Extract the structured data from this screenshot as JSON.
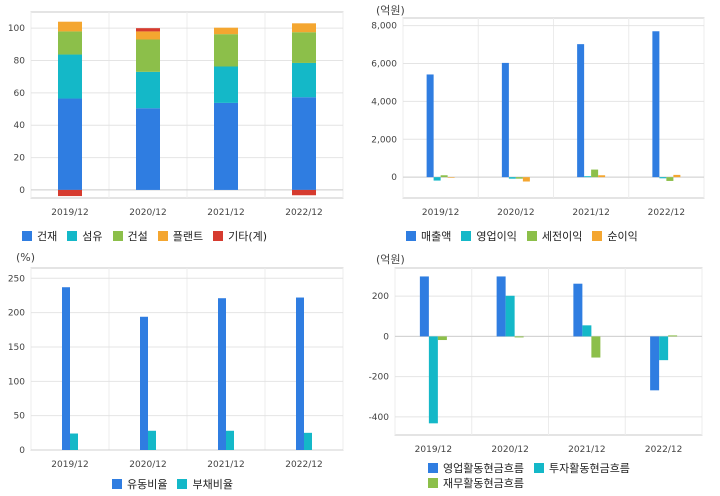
{
  "chart_data": [
    {
      "type": "bar",
      "stacked": true,
      "unit_label": "",
      "categories": [
        "2019/12",
        "2020/12",
        "2021/12",
        "2022/12"
      ],
      "ylim": [
        -5,
        110
      ],
      "yticks": [
        0,
        20,
        40,
        60,
        80,
        100
      ],
      "grid": true,
      "legend_position": "bottom",
      "series": [
        {
          "name": "건재",
          "color": "#2f7de1",
          "values": [
            56.5,
            50.5,
            53.8,
            57.3
          ]
        },
        {
          "name": "섬유",
          "color": "#14b8c8",
          "values": [
            27.2,
            22.5,
            22.5,
            21.2
          ]
        },
        {
          "name": "건설",
          "color": "#8cbf4a",
          "values": [
            14.3,
            20.0,
            20.0,
            19.0
          ]
        },
        {
          "name": "플랜트",
          "color": "#f4a630",
          "values": [
            6.0,
            5.0,
            4.0,
            5.5
          ]
        },
        {
          "name": "기타(계)",
          "color": "#d63b2f",
          "values": [
            -3.8,
            2.0,
            0,
            -3.3
          ]
        }
      ]
    },
    {
      "type": "bar",
      "unit_label": "(억원)",
      "categories": [
        "2019/12",
        "2020/12",
        "2021/12",
        "2022/12"
      ],
      "ylim": [
        -1100,
        8400
      ],
      "yticks": [
        0,
        2000,
        4000,
        6000,
        8000
      ],
      "ytick_labels": [
        "0",
        "2,000",
        "4,000",
        "6,000",
        "8,000"
      ],
      "grid": true,
      "legend_position": "bottom",
      "series": [
        {
          "name": "매출액",
          "color": "#2f7de1",
          "values": [
            5420,
            6030,
            7020,
            7700
          ]
        },
        {
          "name": "영업이익",
          "color": "#14b8c8",
          "values": [
            -180,
            -80,
            50,
            -60
          ]
        },
        {
          "name": "세전이익",
          "color": "#8cbf4a",
          "values": [
            100,
            -80,
            400,
            -200
          ]
        },
        {
          "name": "순이익",
          "color": "#f4a630",
          "values": [
            -30,
            -230,
            100,
            120
          ]
        }
      ]
    },
    {
      "type": "bar",
      "unit_label": "(%)",
      "categories": [
        "2019/12",
        "2020/12",
        "2021/12",
        "2022/12"
      ],
      "ylim": [
        0,
        265
      ],
      "yticks": [
        0,
        50,
        100,
        150,
        200,
        250
      ],
      "grid": true,
      "legend_position": "bottom",
      "series": [
        {
          "name": "유동비율",
          "color": "#2f7de1",
          "values": [
            237,
            194,
            221,
            222
          ]
        },
        {
          "name": "부채비율",
          "color": "#14b8c8",
          "values": [
            24,
            28,
            28,
            25
          ]
        }
      ]
    },
    {
      "type": "bar",
      "unit_label": "(억원)",
      "categories": [
        "2019/12",
        "2020/12",
        "2021/12",
        "2022/12"
      ],
      "ylim": [
        -490,
        340
      ],
      "yticks": [
        -400,
        -200,
        0,
        200
      ],
      "grid": true,
      "legend_position": "bottom",
      "series": [
        {
          "name": "영업활동현금흐름",
          "color": "#2f7de1",
          "values": [
            298,
            298,
            262,
            -268
          ]
        },
        {
          "name": "투자활동현금흐름",
          "color": "#14b8c8",
          "values": [
            -432,
            202,
            55,
            -118
          ]
        },
        {
          "name": "재무활동현금흐름",
          "color": "#8cbf4a",
          "values": [
            -18,
            -5,
            -105,
            5
          ]
        }
      ]
    }
  ]
}
